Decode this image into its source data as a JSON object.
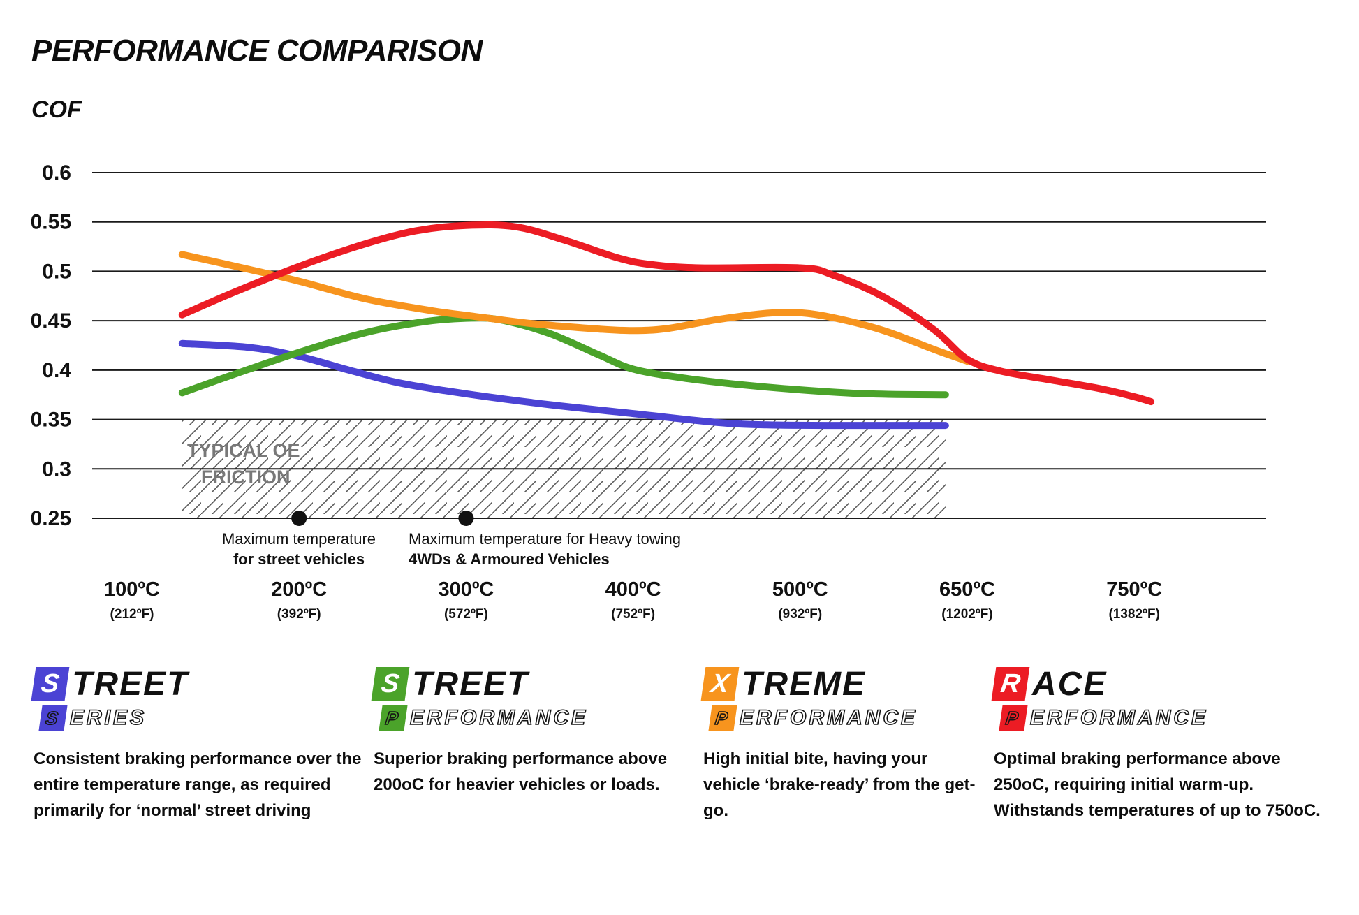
{
  "page": {
    "title": "PERFORMANCE COMPARISON",
    "y_axis_label": "COF"
  },
  "oe_region_label": {
    "line1": "TYPICAL OE",
    "line2": "FRICTION"
  },
  "chart_data": {
    "type": "line",
    "title": "PERFORMANCE COMPARISON",
    "ylabel": "COF",
    "ylim": [
      0.25,
      0.6
    ],
    "grid": "horizontal",
    "y_ticks": [
      {
        "label": "0.6",
        "value": 0.6
      },
      {
        "label": "0.55",
        "value": 0.55
      },
      {
        "label": "0.5",
        "value": 0.5
      },
      {
        "label": "0.45",
        "value": 0.45
      },
      {
        "label": "0.4",
        "value": 0.4
      },
      {
        "label": "0.35",
        "value": 0.35
      },
      {
        "label": "0.3",
        "value": 0.3
      },
      {
        "label": "0.25",
        "value": 0.25
      }
    ],
    "x_ticks": [
      {
        "label": "100ºC",
        "sub": "(212ºF)"
      },
      {
        "label": "200ºC",
        "sub": "(392ºF)"
      },
      {
        "label": "300ºC",
        "sub": "(572ºF)"
      },
      {
        "label": "400ºC",
        "sub": "(752ºF)"
      },
      {
        "label": "500ºC",
        "sub": "(932ºF)"
      },
      {
        "label": "650ºC",
        "sub": "(1202ºF)"
      },
      {
        "label": "750ºC",
        "sub": "(1382ºF)"
      }
    ],
    "oe_region": {
      "label": "TYPICAL OE FRICTION",
      "cof_top": 0.35,
      "cof_bottom": 0.25,
      "xi_start": 0.3,
      "xi_end": 4.87
    },
    "annotations": [
      {
        "xi": 1,
        "v": 0.25,
        "line1": "Maximum temperature",
        "line2": "for street vehicles"
      },
      {
        "xi": 2,
        "v": 0.25,
        "line1": "Maximum temperature for Heavy towing",
        "line2": "4WDs & Armoured Vehicles"
      }
    ],
    "series": [
      {
        "name": "Street Series",
        "color": "#4b43d4",
        "points": [
          [
            0.3,
            0.427
          ],
          [
            0.7,
            0.423
          ],
          [
            1.0,
            0.414
          ],
          [
            1.3,
            0.4
          ],
          [
            1.6,
            0.387
          ],
          [
            2.0,
            0.376
          ],
          [
            2.5,
            0.365
          ],
          [
            3.0,
            0.356
          ],
          [
            3.5,
            0.347
          ],
          [
            3.8,
            0.3445
          ],
          [
            4.2,
            0.344
          ],
          [
            4.87,
            0.344
          ]
        ]
      },
      {
        "name": "Street Performance",
        "color": "#4ba32a",
        "points": [
          [
            0.3,
            0.377
          ],
          [
            0.6,
            0.395
          ],
          [
            1.0,
            0.418
          ],
          [
            1.4,
            0.438
          ],
          [
            1.75,
            0.449
          ],
          [
            2.0,
            0.4525
          ],
          [
            2.2,
            0.451
          ],
          [
            2.5,
            0.437
          ],
          [
            2.8,
            0.415
          ],
          [
            3.0,
            0.401
          ],
          [
            3.3,
            0.392
          ],
          [
            3.6,
            0.386
          ],
          [
            4.0,
            0.38
          ],
          [
            4.4,
            0.376
          ],
          [
            4.87,
            0.375
          ]
        ]
      },
      {
        "name": "Xtreme Performance",
        "color": "#F7941E",
        "points": [
          [
            0.3,
            0.517
          ],
          [
            0.7,
            0.502
          ],
          [
            1.0,
            0.49
          ],
          [
            1.4,
            0.472
          ],
          [
            1.8,
            0.46
          ],
          [
            2.0,
            0.4555
          ],
          [
            2.4,
            0.447
          ],
          [
            2.8,
            0.4415
          ],
          [
            3.0,
            0.44
          ],
          [
            3.2,
            0.442
          ],
          [
            3.5,
            0.451
          ],
          [
            3.8,
            0.4575
          ],
          [
            4.0,
            0.458
          ],
          [
            4.2,
            0.453
          ],
          [
            4.5,
            0.44
          ],
          [
            4.8,
            0.421
          ],
          [
            5.0,
            0.409
          ]
        ]
      },
      {
        "name": "Race Performance",
        "color": "#EC1C24",
        "points": [
          [
            0.3,
            0.456
          ],
          [
            0.6,
            0.478
          ],
          [
            1.0,
            0.505
          ],
          [
            1.4,
            0.528
          ],
          [
            1.7,
            0.541
          ],
          [
            2.0,
            0.5465
          ],
          [
            2.3,
            0.545
          ],
          [
            2.6,
            0.531
          ],
          [
            2.9,
            0.514
          ],
          [
            3.1,
            0.507
          ],
          [
            3.4,
            0.5035
          ],
          [
            4.0,
            0.5035
          ],
          [
            4.2,
            0.496
          ],
          [
            4.5,
            0.474
          ],
          [
            4.8,
            0.441
          ],
          [
            5.0,
            0.411
          ],
          [
            5.2,
            0.399
          ],
          [
            5.5,
            0.39
          ],
          [
            5.8,
            0.381
          ],
          [
            6.0,
            0.373
          ],
          [
            6.1,
            0.368
          ]
        ]
      }
    ]
  },
  "legend": [
    {
      "name": "Street Series",
      "color": "#4b43d4",
      "initial1": "S",
      "word1rest": "TREET",
      "initial2": "S",
      "word2rest": "ERIES",
      "description": "Consistent braking performance over the entire temperature range, as required primarily for ‘normal’ street driving"
    },
    {
      "name": "Street Performance",
      "color": "#4ba32a",
      "initial1": "S",
      "word1rest": "TREET",
      "initial2": "P",
      "word2rest": "ERFORMANCE",
      "description": "Superior braking performance above 200oC for heavier vehicles or loads."
    },
    {
      "name": "Xtreme Performance",
      "color": "#F7941E",
      "initial1": "X",
      "word1rest": "TREME",
      "initial2": "P",
      "word2rest": "ERFORMANCE",
      "description": "High initial bite, having your vehicle ‘brake-ready’ from the get-go."
    },
    {
      "name": "Race Performance",
      "color": "#EC1C24",
      "initial1": "R",
      "word1rest": "ACE",
      "initial2": "P",
      "word2rest": "ERFORMANCE",
      "description": "Optimal braking performance above 250oC, requiring initial warm-up. Withstands temperatures of up to 750oC."
    }
  ]
}
